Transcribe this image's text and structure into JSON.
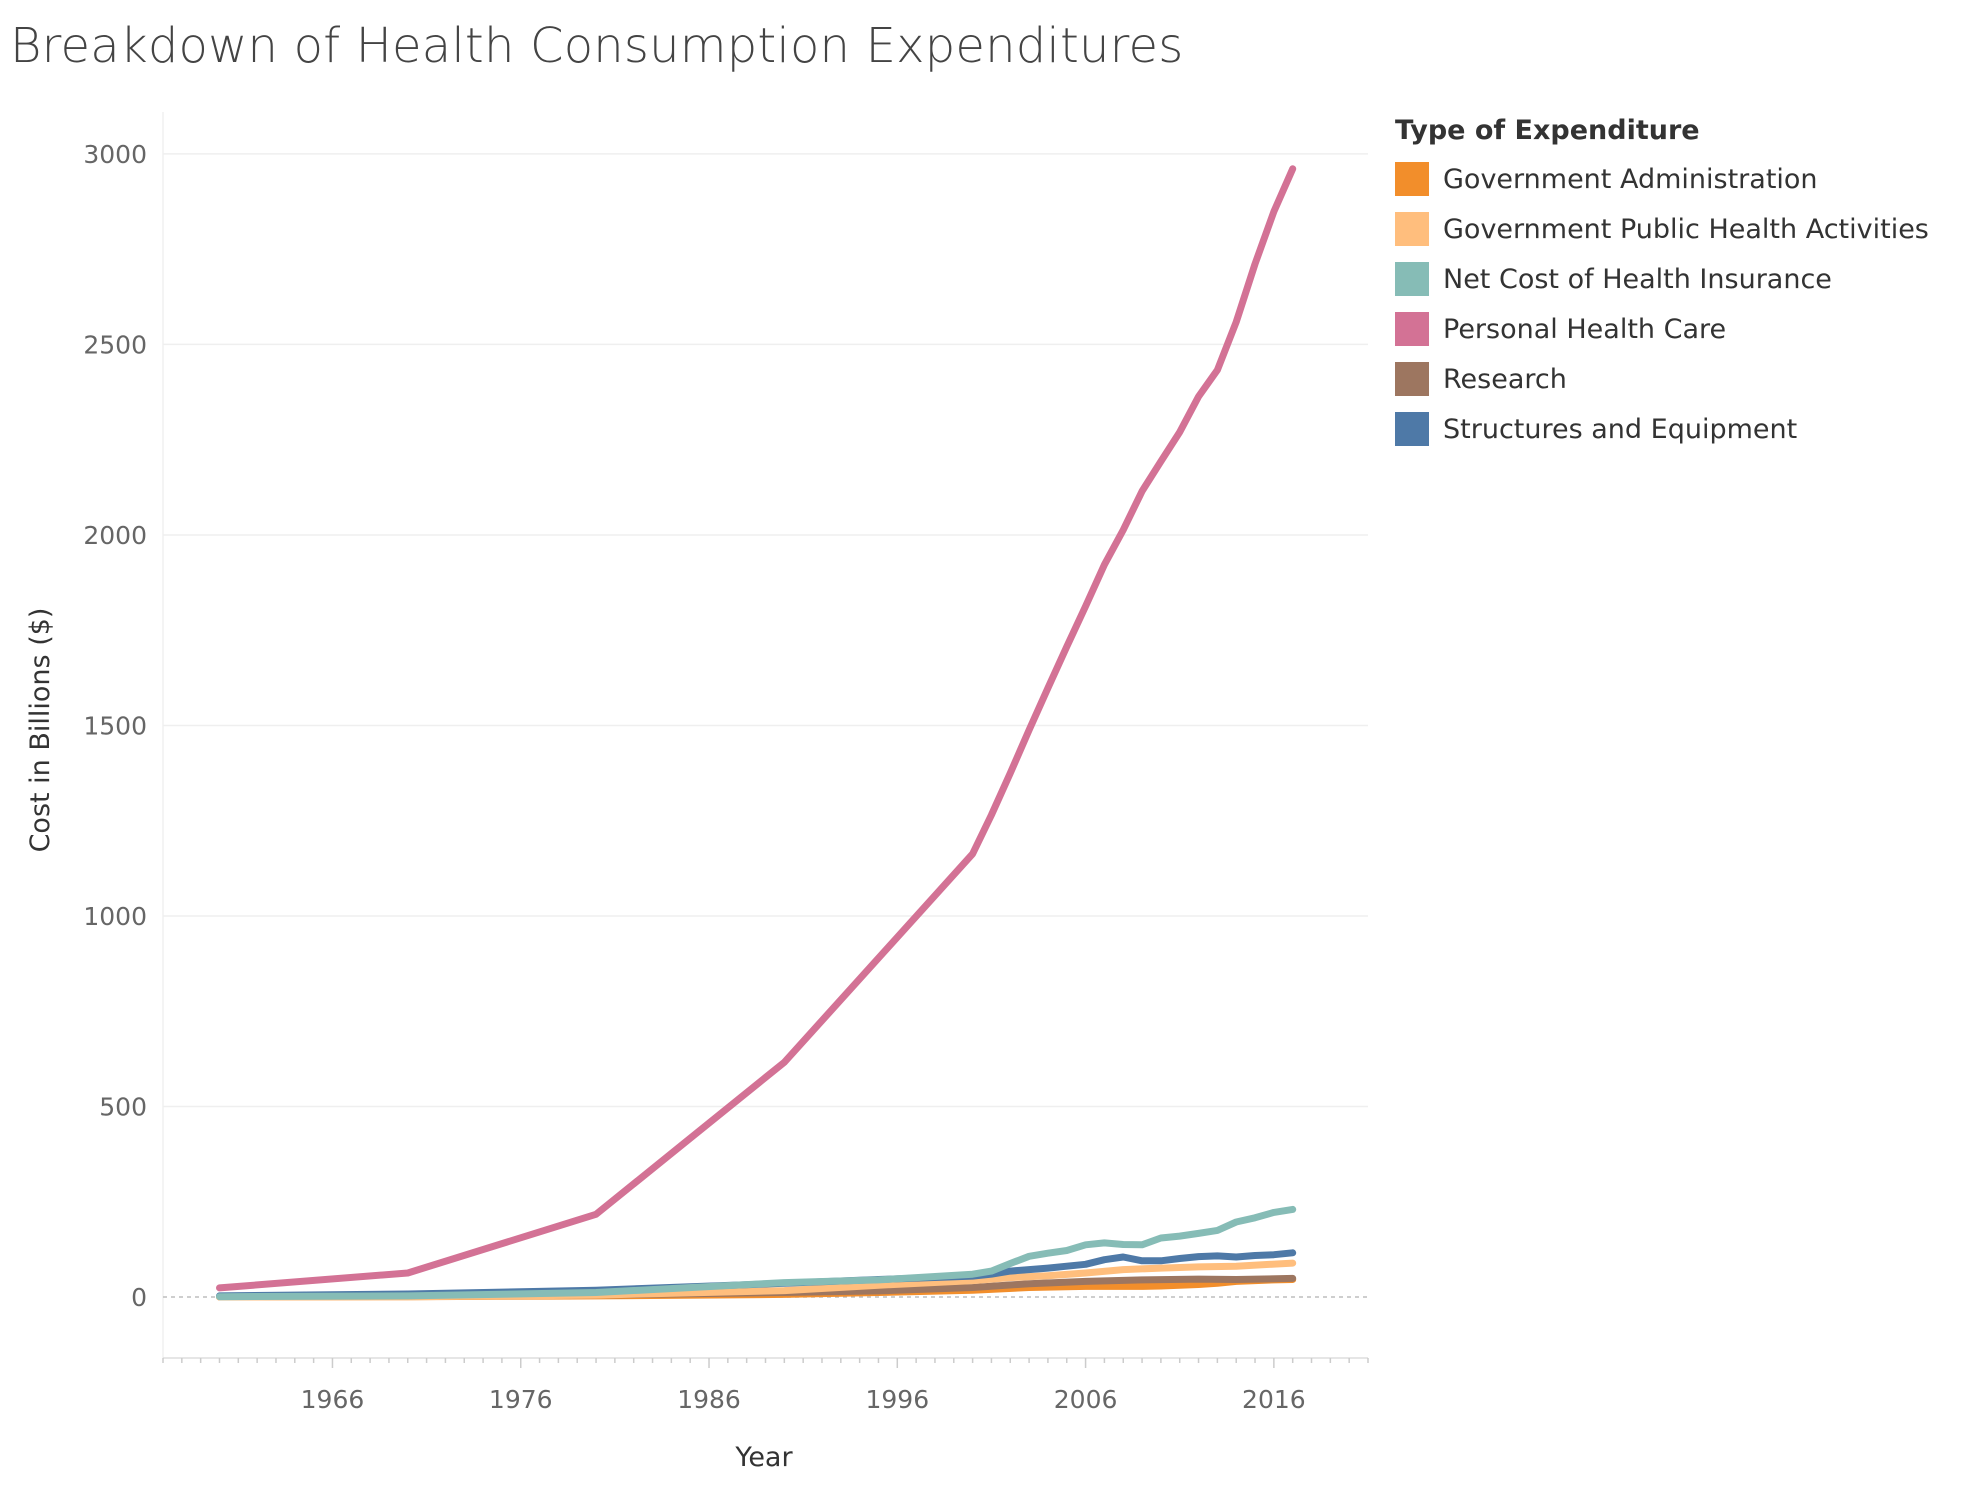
{
  "chart_data": {
    "type": "line",
    "title": "Breakdown of Health Consumption Expenditures",
    "xlabel": "Year",
    "ylabel": "Cost in Billions ($)",
    "xlim": [
      1957,
      2021
    ],
    "ylim": [
      -160,
      3110
    ],
    "x_ticks": [
      1966,
      1976,
      1986,
      1996,
      2006,
      2016
    ],
    "y_ticks": [
      0,
      500,
      1000,
      1500,
      2000,
      2500,
      3000
    ],
    "grid": true,
    "legend_title": "Type of Expenditure",
    "legend_position": "right",
    "series": [
      {
        "name": "Personal Health Care",
        "color": "#d37295",
        "x": [
          1960,
          1970,
          1980,
          1990,
          2000,
          2001,
          2002,
          2003,
          2004,
          2005,
          2006,
          2007,
          2008,
          2009,
          2010,
          2011,
          2012,
          2013,
          2014,
          2015,
          2016,
          2017
        ],
        "y": [
          24,
          63,
          217,
          616,
          1163,
          1265,
          1375,
          1488,
          1598,
          1707,
          1813,
          1922,
          2013,
          2115,
          2193,
          2270,
          2363,
          2433,
          2559,
          2711,
          2849,
          2961
        ]
      },
      {
        "name": "Net Cost of Health Insurance",
        "color": "#86bcb6",
        "x": [
          1960,
          1970,
          1980,
          1990,
          1995,
          2000,
          2001,
          2002,
          2003,
          2004,
          2005,
          2006,
          2007,
          2008,
          2009,
          2010,
          2011,
          2012,
          2013,
          2014,
          2015,
          2016,
          2017
        ],
        "y": [
          1,
          3,
          12,
          38,
          45,
          60,
          68,
          88,
          107,
          115,
          122,
          137,
          142,
          138,
          137,
          155,
          160,
          167,
          175,
          197,
          208,
          222,
          230
        ]
      },
      {
        "name": "Structures and Equipment",
        "color": "#4e79a7",
        "x": [
          1960,
          1970,
          1980,
          1990,
          1995,
          2000,
          2001,
          2002,
          2003,
          2004,
          2005,
          2006,
          2007,
          2008,
          2009,
          2010,
          2011,
          2012,
          2013,
          2014,
          2015,
          2016,
          2017
        ],
        "y": [
          3,
          8,
          18,
          36,
          46,
          55,
          60,
          68,
          72,
          76,
          81,
          86,
          98,
          105,
          95,
          95,
          101,
          106,
          108,
          105,
          109,
          111,
          116
        ]
      },
      {
        "name": "Government Public Health Activities",
        "color": "#ffbe7d",
        "x": [
          1960,
          1970,
          1980,
          1990,
          1995,
          2000,
          2002,
          2004,
          2006,
          2008,
          2010,
          2012,
          2014,
          2017
        ],
        "y": [
          0,
          1,
          5,
          17,
          31,
          43,
          51,
          56,
          63,
          72,
          76,
          79,
          81,
          89
        ]
      },
      {
        "name": "Research",
        "color": "#9d7660",
        "x": [
          1960,
          1970,
          1980,
          1990,
          1995,
          2000,
          2003,
          2006,
          2009,
          2012,
          2014,
          2017
        ],
        "y": [
          1,
          2,
          5,
          12,
          16,
          25,
          35,
          41,
          45,
          47,
          46,
          49
        ]
      },
      {
        "name": "Government Administration",
        "color": "#f28e2b",
        "x": [
          1960,
          1970,
          1980,
          1990,
          1995,
          2000,
          2003,
          2006,
          2009,
          2010,
          2012,
          2013,
          2014,
          2016,
          2017
        ],
        "y": [
          0,
          1,
          3,
          7,
          12,
          18,
          25,
          28,
          28,
          29,
          33,
          36,
          41,
          45,
          46
        ]
      }
    ],
    "legend_order": [
      "Government Administration",
      "Government Public Health Activities",
      "Net Cost of Health Insurance",
      "Personal Health Care",
      "Research",
      "Structures and Equipment"
    ]
  }
}
